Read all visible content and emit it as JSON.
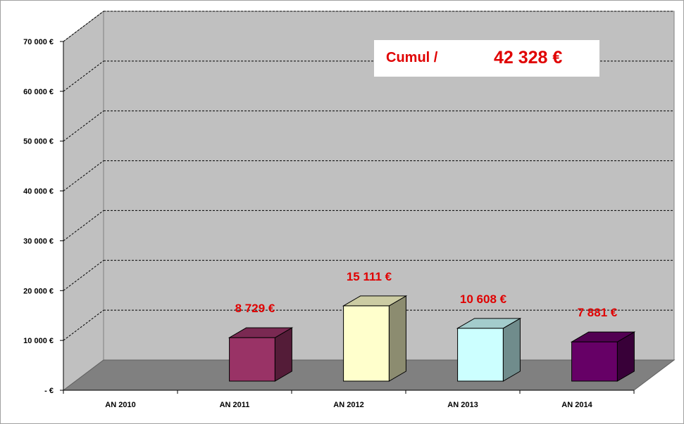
{
  "chart_data": {
    "type": "bar",
    "title": "",
    "xlabel": "",
    "ylabel": "",
    "categories": [
      "AN 2010",
      "AN 2011",
      "AN 2012",
      "AN 2013",
      "AN 2014"
    ],
    "values": [
      0,
      8729,
      15111,
      10608,
      7881
    ],
    "data_labels": [
      "",
      "8 729 €",
      "15 111 €",
      "10 608 €",
      "7 881 €"
    ],
    "ylim": [
      0,
      70000
    ],
    "yticks": [
      0,
      10000,
      20000,
      30000,
      40000,
      50000,
      60000,
      70000
    ],
    "ytick_labels": [
      "-   €",
      "10 000 €",
      "20 000 €",
      "30 000 €",
      "40 000 €",
      "50 000 €",
      "60 000 €",
      "70 000 €"
    ],
    "grid": true,
    "legend": false,
    "style": "3d-column",
    "bar_colors": [
      "#993366",
      "#993366",
      "#ffffcc",
      "#ccffff",
      "#660066"
    ],
    "plot_background": "#c0c0c0",
    "floor_color": "#808080",
    "data_label_color": "#e00000"
  },
  "annotation": {
    "label": "Cumul /",
    "value": "42 328 €"
  }
}
